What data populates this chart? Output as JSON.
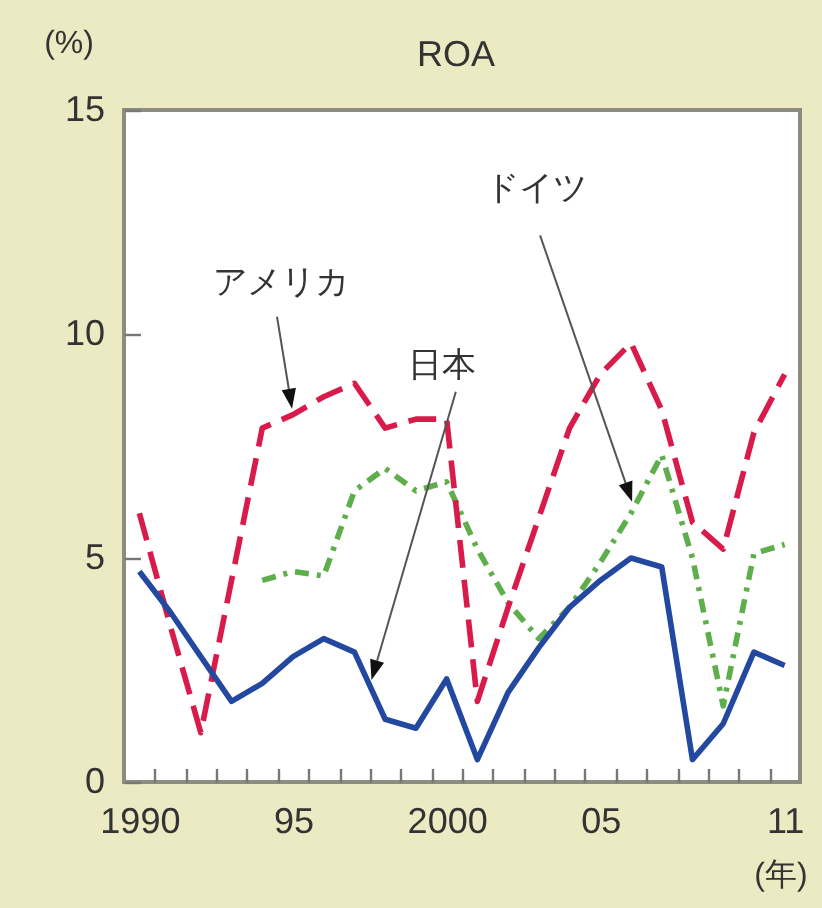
{
  "chart_data": {
    "type": "line",
    "title": "ROA",
    "ylabel": "(%)",
    "xlabel": "(年)",
    "x": [
      1990,
      1991,
      1992,
      1993,
      1994,
      1995,
      1996,
      1997,
      1998,
      1999,
      2000,
      2001,
      2002,
      2003,
      2004,
      2005,
      2006,
      2007,
      2008,
      2009,
      2010,
      2011
    ],
    "series": [
      {
        "name": "ドイツ",
        "color": "#5fae4c",
        "line_style": "dotted",
        "values": [
          null,
          null,
          null,
          null,
          4.5,
          4.7,
          4.6,
          6.5,
          7.0,
          6.5,
          6.7,
          5.2,
          4.0,
          3.2,
          3.9,
          4.9,
          6.0,
          7.3,
          5.0,
          1.7,
          5.1,
          5.3
        ]
      },
      {
        "name": "アメリカ",
        "color": "#d81b4a",
        "line_style": "dashed",
        "values": [
          6.0,
          3.5,
          1.1,
          4.5,
          7.9,
          8.2,
          8.6,
          8.9,
          7.9,
          8.1,
          8.1,
          1.8,
          3.9,
          5.9,
          7.9,
          9.1,
          9.8,
          8.3,
          5.8,
          5.2,
          7.8,
          9.1
        ]
      },
      {
        "name": "日本",
        "color": "#2348a0",
        "line_style": "solid",
        "values": [
          4.7,
          3.8,
          2.8,
          1.8,
          2.2,
          2.8,
          3.2,
          2.9,
          1.4,
          1.2,
          2.3,
          0.5,
          2.0,
          3.0,
          3.9,
          4.5,
          5.0,
          4.8,
          0.5,
          1.3,
          2.9,
          2.6
        ]
      }
    ],
    "xlim": [
      1989.5,
      2011.5
    ],
    "xticks": [
      1990,
      {
        "value": 1990.5,
        "label": null
      },
      {
        "value": 1991.5,
        "label": null
      },
      {
        "value": 1992.5,
        "label": null
      },
      {
        "value": 1993.5,
        "label": null
      },
      {
        "value": 1994.5,
        "label": null
      },
      {
        "value": 1995,
        "label": "95"
      },
      {
        "value": 1995.5,
        "label": null
      },
      {
        "value": 1996.5,
        "label": null
      },
      {
        "value": 1997.5,
        "label": null
      },
      {
        "value": 1998.5,
        "label": null
      },
      {
        "value": 1999.5,
        "label": null
      },
      2000,
      {
        "value": 2000.5,
        "label": null
      },
      {
        "value": 2001.5,
        "label": null
      },
      {
        "value": 2002.5,
        "label": null
      },
      {
        "value": 2003.5,
        "label": null
      },
      {
        "value": 2004.5,
        "label": null
      },
      {
        "value": 2005,
        "label": "05"
      },
      {
        "value": 2005.5,
        "label": null
      },
      {
        "value": 2006.5,
        "label": null
      },
      {
        "value": 2007.5,
        "label": null
      },
      {
        "value": 2008.5,
        "label": null
      },
      {
        "value": 2009.5,
        "label": null
      },
      {
        "value": 2010.5,
        "label": null
      },
      {
        "value": 2011,
        "label": "11"
      }
    ],
    "ylim": [
      0,
      15
    ],
    "yticks": [
      0,
      5,
      10,
      15
    ]
  }
}
